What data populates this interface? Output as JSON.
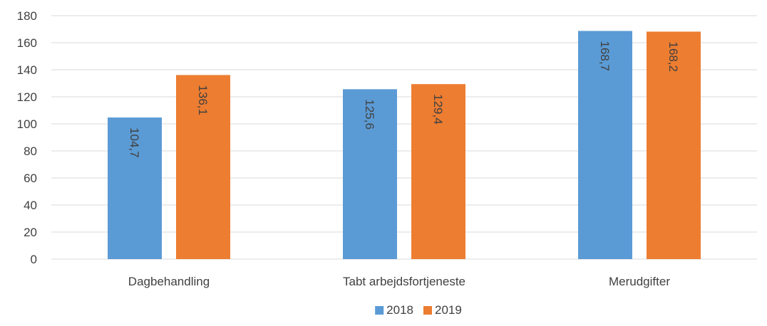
{
  "chart_data": {
    "type": "bar",
    "title": "",
    "xlabel": "",
    "ylabel": "",
    "categories": [
      "Dagbehandling",
      "Tabt arbejdsfortjeneste",
      "Merudgifter"
    ],
    "series": [
      {
        "name": "2018",
        "values": [
          104.7,
          125.6,
          168.7
        ],
        "labels": [
          "104,7",
          "125,6",
          "168,7"
        ],
        "color": "#5b9bd5"
      },
      {
        "name": "2019",
        "values": [
          136.1,
          129.4,
          168.2
        ],
        "labels": [
          "136,1",
          "129,4",
          "168,2"
        ],
        "color": "#ed7d31"
      }
    ],
    "ylim": [
      0,
      180
    ],
    "yticks": [
      0,
      20,
      40,
      60,
      80,
      100,
      120,
      140,
      160,
      180
    ],
    "grid": true,
    "legend_position": "bottom",
    "data_label_orientation": "vertical"
  }
}
